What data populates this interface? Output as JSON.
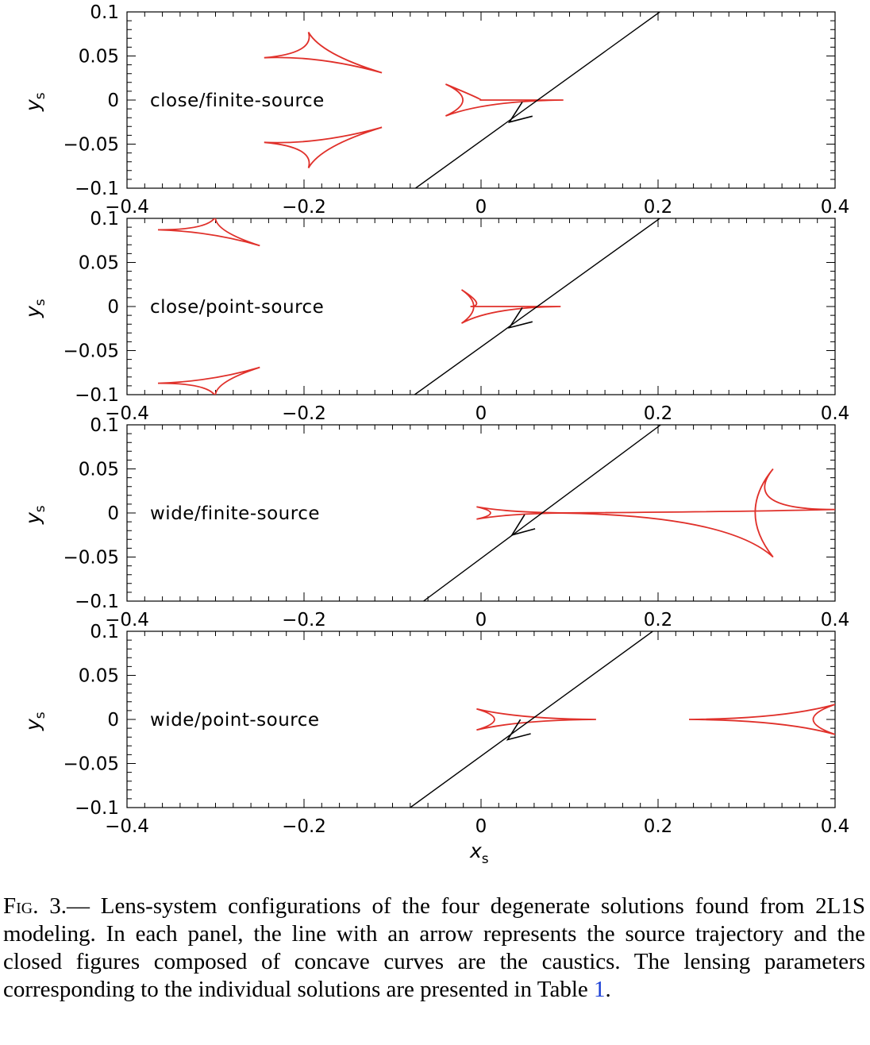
{
  "chart_data": [
    {
      "type": "line",
      "label": "close/finite-source",
      "xlim": [
        -0.4,
        0.4
      ],
      "ylim": [
        -0.1,
        0.1
      ],
      "xticks": [
        "−0.4",
        "−0.2",
        "0",
        "0.2",
        "0.4"
      ],
      "yticks": [
        "0.1",
        "0.05",
        "0",
        "−0.05",
        "−0.1"
      ],
      "ylabel": "y",
      "ylabel_sub": "s",
      "trajectory": {
        "x": [
          -0.074,
          0.202
        ],
        "y": [
          -0.1,
          0.1
        ]
      },
      "arrow": {
        "from": [
          0.06,
          -0.013
        ],
        "to": [
          0.032,
          -0.025
        ]
      },
      "caustics": [
        {
          "name": "upper planetary",
          "vertices": [
            [
              -0.195,
              0.077
            ],
            [
              -0.245,
              0.048
            ],
            [
              -0.112,
              0.031
            ]
          ]
        },
        {
          "name": "lower planetary",
          "vertices": [
            [
              -0.195,
              -0.077
            ],
            [
              -0.245,
              -0.048
            ],
            [
              -0.112,
              -0.031
            ]
          ]
        },
        {
          "name": "central",
          "vertices": [
            [
              -0.04,
              0.018
            ],
            [
              0.0,
              0.0
            ],
            [
              0.093,
              0.0
            ],
            [
              -0.04,
              -0.018
            ]
          ]
        }
      ]
    },
    {
      "type": "line",
      "label": "close/point-source",
      "xlim": [
        -0.4,
        0.4
      ],
      "ylim": [
        -0.1,
        0.1
      ],
      "xticks": [
        "−0.4",
        "−0.2",
        "0",
        "0.2",
        "0.4"
      ],
      "yticks": [
        "0.1",
        "0.05",
        "0",
        "−0.05",
        "−0.1"
      ],
      "ylabel": "y",
      "ylabel_sub": "s",
      "trajectory": {
        "x": [
          -0.075,
          0.202
        ],
        "y": [
          -0.1,
          0.1
        ]
      },
      "arrow": {
        "from": [
          0.06,
          -0.01
        ],
        "to": [
          0.032,
          -0.024
        ]
      },
      "caustics": [
        {
          "name": "upper planetary",
          "vertices": [
            [
              -0.3,
              0.102
            ],
            [
              -0.365,
              0.087
            ],
            [
              -0.25,
              0.069
            ]
          ]
        },
        {
          "name": "lower planetary",
          "vertices": [
            [
              -0.3,
              -0.102
            ],
            [
              -0.365,
              -0.087
            ],
            [
              -0.25,
              -0.069
            ]
          ]
        },
        {
          "name": "central",
          "vertices": [
            [
              -0.022,
              0.019
            ],
            [
              -0.012,
              0.0
            ],
            [
              0.09,
              0.0
            ],
            [
              -0.022,
              -0.019
            ]
          ]
        }
      ]
    },
    {
      "type": "line",
      "label": "wide/finite-source",
      "xlim": [
        -0.4,
        0.4
      ],
      "ylim": [
        -0.1,
        0.1
      ],
      "xticks": [
        "−0.4",
        "−0.2",
        "0",
        "0.2",
        "0.4"
      ],
      "yticks": [
        "0.1",
        "0.05",
        "0",
        "−0.05",
        "−0.1"
      ],
      "ylabel": "y",
      "ylabel_sub": "s",
      "trajectory": {
        "x": [
          -0.065,
          0.203
        ],
        "y": [
          -0.1,
          0.1
        ]
      },
      "arrow": {
        "from": [
          0.064,
          -0.013
        ],
        "to": [
          0.035,
          -0.025
        ]
      },
      "caustics": [
        {
          "name": "central",
          "vertices": [
            [
              -0.005,
              0.007
            ],
            [
              -0.005,
              -0.007
            ],
            [
              0.1,
              0.0
            ]
          ]
        },
        {
          "name": "planetary",
          "vertices": [
            [
              0.33,
              0.05
            ],
            [
              0.33,
              -0.05
            ],
            [
              0.08,
              0.0
            ],
            [
              0.4,
              0.004
            ]
          ]
        }
      ]
    },
    {
      "type": "line",
      "label": "wide/point-source",
      "xlim": [
        -0.4,
        0.4
      ],
      "ylim": [
        -0.1,
        0.1
      ],
      "xticks": [
        "−0.4",
        "−0.2",
        "0",
        "0.2",
        "0.4"
      ],
      "yticks": [
        "0.1",
        "0.05",
        "0",
        "−0.05",
        "−0.1"
      ],
      "ylabel": "y",
      "ylabel_sub": "s",
      "xlabel": "x",
      "xlabel_sub": "s",
      "trajectory": {
        "x": [
          -0.08,
          0.194
        ],
        "y": [
          -0.1,
          0.1
        ]
      },
      "arrow": {
        "from": [
          0.058,
          -0.01
        ],
        "to": [
          0.03,
          -0.023
        ]
      },
      "caustics": [
        {
          "name": "central",
          "vertices": [
            [
              -0.005,
              0.012
            ],
            [
              -0.005,
              -0.012
            ],
            [
              0.13,
              0.0
            ]
          ]
        },
        {
          "name": "planetary",
          "vertices": [
            [
              0.235,
              0.0
            ],
            [
              0.4,
              0.017
            ],
            [
              0.4,
              -0.017
            ]
          ]
        }
      ]
    }
  ],
  "caption": {
    "fig_label": "Fig",
    "fig_number": ". 3.—",
    "text_before_ref": "  Lens-system configurations of the four degenerate solutions found from 2L1S modeling. In each panel, the line with an arrow represents the source trajectory and the closed figures composed of concave curves are the caustics.  The lensing parameters corresponding to the individual solutions are presented in Table ",
    "ref": "1",
    "text_after_ref": "."
  },
  "colors": {
    "caustic": "#e0302a",
    "trajectory": "#000000",
    "axes": "#000000",
    "ref_link": "#1a3fd6"
  }
}
